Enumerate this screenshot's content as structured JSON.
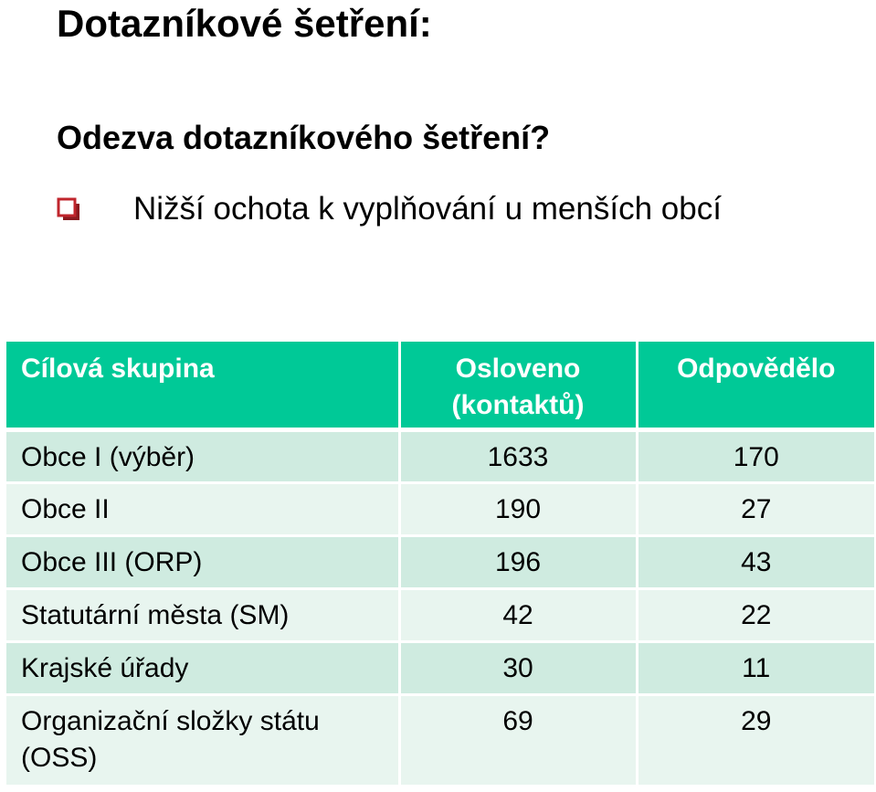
{
  "slide": {
    "title": "Dotazníkové šetření:",
    "subtitle": "Odezva dotazníkového šetření?",
    "bullet": {
      "icon": "checkbox-icon",
      "text": "Nižší ochota k vyplňování u menších obcí"
    }
  },
  "table": {
    "headers": {
      "col1": "Cílová skupina",
      "col2": "Osloveno (kontaktů)",
      "col3": "Odpovědělo"
    },
    "rows": [
      {
        "group": "Obce I (výběr)",
        "contacted": "1633",
        "responded": "170"
      },
      {
        "group": "Obce II",
        "contacted": "190",
        "responded": "27"
      },
      {
        "group": "Obce III (ORP)",
        "contacted": "196",
        "responded": "43"
      },
      {
        "group": "Statutární města (SM)",
        "contacted": "42",
        "responded": "22"
      },
      {
        "group": "Krajské úřady",
        "contacted": "30",
        "responded": "11"
      },
      {
        "group": "Organizační složky státu (OSS)",
        "contacted": "69",
        "responded": "29"
      }
    ]
  },
  "colors": {
    "header_bg": "#00c997",
    "row_odd_bg": "#cfebe0",
    "row_even_bg": "#e8f5ef",
    "bullet_color": "#c0252c"
  }
}
